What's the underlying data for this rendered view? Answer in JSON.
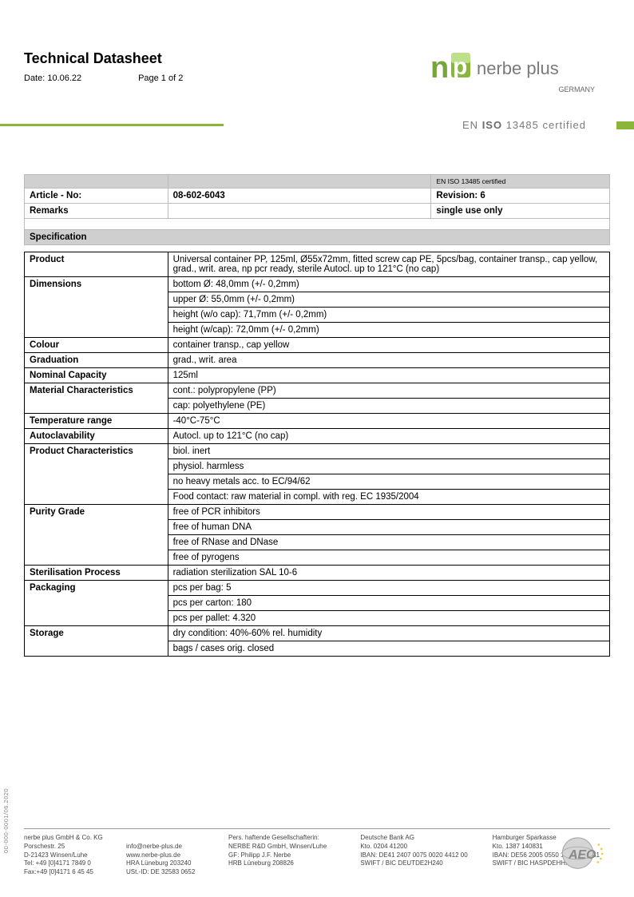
{
  "header": {
    "title": "Technical Datasheet",
    "date_label": "Date: 10.06.22",
    "page_label": "Page 1 of 2",
    "brand_text": "nerbe plus",
    "country": "GERMANY",
    "iso_line_pre": "EN ",
    "iso_line_bold": "ISO",
    "iso_line_post": " 13485 certified",
    "logo_colors": {
      "n": "#76a63a",
      "p_top": "#bfe08a",
      "p_body": "#8bb63c"
    }
  },
  "meta": {
    "cert_note": "EN ISO 13485 certified",
    "article_label": "Article - No:",
    "article_value": "08-602-6043",
    "revision_label": "Revision: 6",
    "remarks_label": "Remarks",
    "remarks_value": "single use only",
    "spec_header": "Specification"
  },
  "spec": [
    {
      "label": "Product",
      "rows": [
        "Universal container PP, 125ml, Ø55x72mm, fitted  screw cap PE, 5pcs/bag, container transp., cap  yellow, grad., writ. area, np pcr ready, sterile  Autocl. up to 121°C (no cap)"
      ]
    },
    {
      "label": "Dimensions",
      "rows": [
        "bottom Ø: 48,0mm (+/- 0,2mm)",
        "upper Ø: 55,0mm (+/- 0,2mm)",
        "height (w/o cap): 71,7mm (+/- 0,2mm)",
        "height (w/cap): 72,0mm (+/- 0,2mm)"
      ]
    },
    {
      "label": "Colour",
      "rows": [
        "container transp., cap yellow"
      ]
    },
    {
      "label": "Graduation",
      "rows": [
        "grad., writ. area"
      ]
    },
    {
      "label": "Nominal Capacity",
      "rows": [
        "125ml"
      ]
    },
    {
      "label": "Material Characteristics",
      "rows": [
        "cont.: polypropylene (PP)",
        "cap: polyethylene (PE)"
      ]
    },
    {
      "label": "Temperature range",
      "rows": [
        "-40°C-75°C"
      ]
    },
    {
      "label": "Autoclavability",
      "rows": [
        "Autocl. up to 121°C (no cap)"
      ]
    },
    {
      "label": "Product Characteristics",
      "rows": [
        "biol. inert",
        "physiol. harmless",
        "no heavy metals acc. to EC/94/62",
        "Food contact: raw material in compl. with reg. EC 1935/2004"
      ]
    },
    {
      "label": "Purity Grade",
      "rows": [
        "free of PCR inhibitors",
        "free of human DNA",
        "free of RNase and DNase",
        "free of pyrogens"
      ]
    },
    {
      "label": "Sterilisation Process",
      "rows": [
        "radiation sterilization SAL 10-6"
      ]
    },
    {
      "label": "Packaging",
      "rows": [
        "pcs per bag: 5",
        "pcs per carton: 180",
        "pcs per pallet: 4.320"
      ]
    },
    {
      "label": "Storage",
      "rows": [
        "dry condition: 40%-60% rel. humidity",
        "bags / cases orig. closed"
      ]
    }
  ],
  "footer": {
    "side_code": "00-000-0001/06.2020",
    "cols": [
      [
        "nerbe plus GmbH & Co. KG",
        "Porschestr. 25",
        "D-21423 Winsen/Luhe",
        "Tel: +49 [0]4171 7849 0",
        "Fax:+49 [0]4171 6 45 45"
      ],
      [
        "",
        "info@nerbe-plus.de",
        "www.nerbe-plus.de",
        "HRA Lüneburg 203240",
        "USt.-ID: DE 32583 0652"
      ],
      [
        "Pers. haftende Gesellschafterin:",
        "NERBE R&D GmbH, Winsen/Luhe",
        "GF: Philipp J.F. Nerbe",
        "HRB Lüneburg 208826"
      ],
      [
        "Deutsche Bank AG",
        "Kto. 0204 41200",
        "IBAN: DE41 2407 0075 0020 4412 00",
        "SWIFT / BIC DEUTDE2H240"
      ],
      [
        "Hamburger Sparkasse",
        "Kto. 1387 140831",
        "IBAN: DE56 2005 0550 1387 1408 31",
        "SWIFT / BIC HASPDEHHXXX"
      ]
    ],
    "aeo_label": "AEO"
  }
}
